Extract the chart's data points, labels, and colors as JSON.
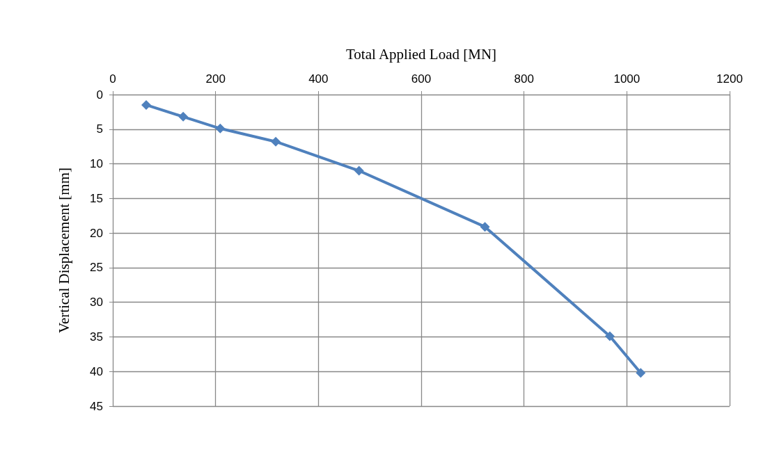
{
  "chart_data": {
    "type": "line",
    "xlabel": "Total Applied Load [MN]",
    "ylabel": "Vertical Displacement [mm]",
    "x": [
      65,
      137,
      209,
      317,
      479,
      724,
      967,
      1027
    ],
    "series": [
      {
        "color": "#4f81bd",
        "values": [
          1.5,
          3.2,
          4.9,
          6.8,
          11.0,
          19.1,
          34.9,
          40.2
        ]
      }
    ],
    "xlim": [
      0,
      1200
    ],
    "xticks": [
      0,
      200,
      400,
      600,
      800,
      1000,
      1200
    ],
    "ylim": [
      45,
      0
    ],
    "yticks": [
      0,
      5,
      10,
      15,
      20,
      25,
      30,
      35,
      40,
      45
    ],
    "grid": true,
    "marker": "diamond",
    "line_style": "solid"
  }
}
